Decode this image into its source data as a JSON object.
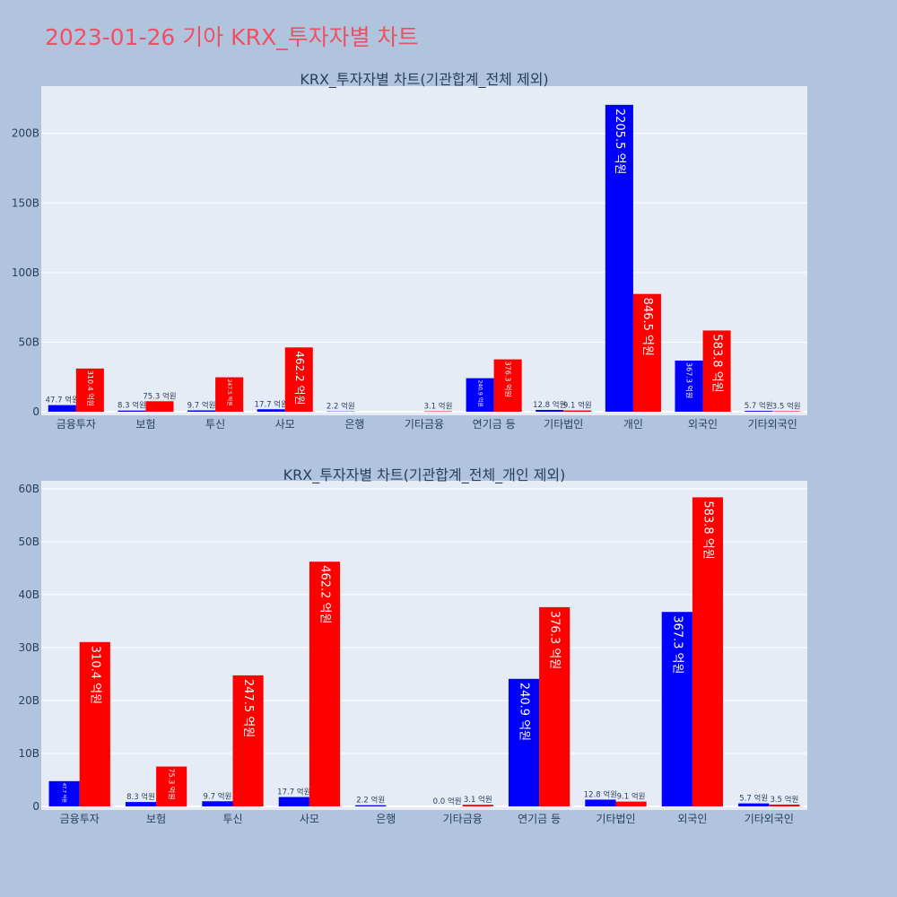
{
  "title": "2023-01-26 기아 KRX_투자자별 차트",
  "colors": {
    "page_bg": "#b0c4de",
    "plot_bg": "#e5ecf6",
    "title": "#ef5064",
    "series_blue": "#0000ff",
    "series_red": "#ff0000"
  },
  "chart_data": [
    {
      "type": "bar",
      "title": "KRX_투자자별 차트(기관합계_전체 제외)",
      "categories": [
        "금융투자",
        "보험",
        "투신",
        "사모",
        "은행",
        "기타금융",
        "연기금 등",
        "기타법인",
        "개인",
        "외국인",
        "기타외국인"
      ],
      "series": [
        {
          "color": "#0000ff",
          "values": [
            4.77,
            0.83,
            0.97,
            1.77,
            0.22,
            null,
            24.09,
            1.28,
            220.55,
            36.73,
            0.57
          ],
          "labels": [
            "47.7 억원",
            "8.3 억원",
            "9.7 억원",
            "17.7 억원",
            "2.2 억원",
            "",
            "240.9 억원",
            "12.8 억원",
            "2205.5 억원",
            "367.3 억원",
            "5.7 억원"
          ]
        },
        {
          "color": "#ff0000",
          "values": [
            31.04,
            7.53,
            24.75,
            46.22,
            null,
            0.31,
            37.63,
            0.91,
            84.65,
            58.38,
            0.35
          ],
          "labels": [
            "310.4 억원",
            "75.3 억원",
            "247.5 억원",
            "462.2 억원",
            "",
            "3.1 억원",
            "376.3 억원",
            "9.1 억원",
            "846.5 억원",
            "583.8 억원",
            "3.5 억원"
          ]
        }
      ],
      "y_unit": "B",
      "ylim": [
        0,
        234
      ],
      "yticks": [
        0,
        50,
        100,
        150,
        200
      ],
      "ytick_labels": [
        "0",
        "50B",
        "100B",
        "150B",
        "200B"
      ],
      "grid": true,
      "legend": "none"
    },
    {
      "type": "bar",
      "title": "KRX_투자자별 차트(기관합계_전체_개인 제외)",
      "categories": [
        "금융투자",
        "보험",
        "투신",
        "사모",
        "은행",
        "기타금융",
        "연기금 등",
        "기타법인",
        "외국인",
        "기타외국인"
      ],
      "series": [
        {
          "color": "#0000ff",
          "values": [
            4.77,
            0.83,
            0.97,
            1.77,
            0.22,
            0.0,
            24.09,
            1.28,
            36.73,
            0.57
          ],
          "labels": [
            "47.7 억원",
            "8.3 억원",
            "9.7 억원",
            "17.7 억원",
            "2.2 억원",
            "0.0 억원",
            "240.9 억원",
            "12.8 억원",
            "367.3 억원",
            "5.7 억원"
          ]
        },
        {
          "color": "#ff0000",
          "values": [
            31.04,
            7.53,
            24.75,
            46.22,
            null,
            0.31,
            37.63,
            0.91,
            58.38,
            0.35
          ],
          "labels": [
            "310.4 억원",
            "75.3 억원",
            "247.5 억원",
            "462.2 억원",
            "",
            "3.1 억원",
            "376.3 억원",
            "9.1 억원",
            "583.8 억원",
            "3.5 억원"
          ]
        }
      ],
      "y_unit": "B",
      "ylim": [
        0,
        61.5
      ],
      "yticks": [
        0,
        10,
        20,
        30,
        40,
        50,
        60
      ],
      "ytick_labels": [
        "0",
        "10B",
        "20B",
        "30B",
        "40B",
        "50B",
        "60B"
      ],
      "grid": true,
      "legend": "none"
    }
  ]
}
